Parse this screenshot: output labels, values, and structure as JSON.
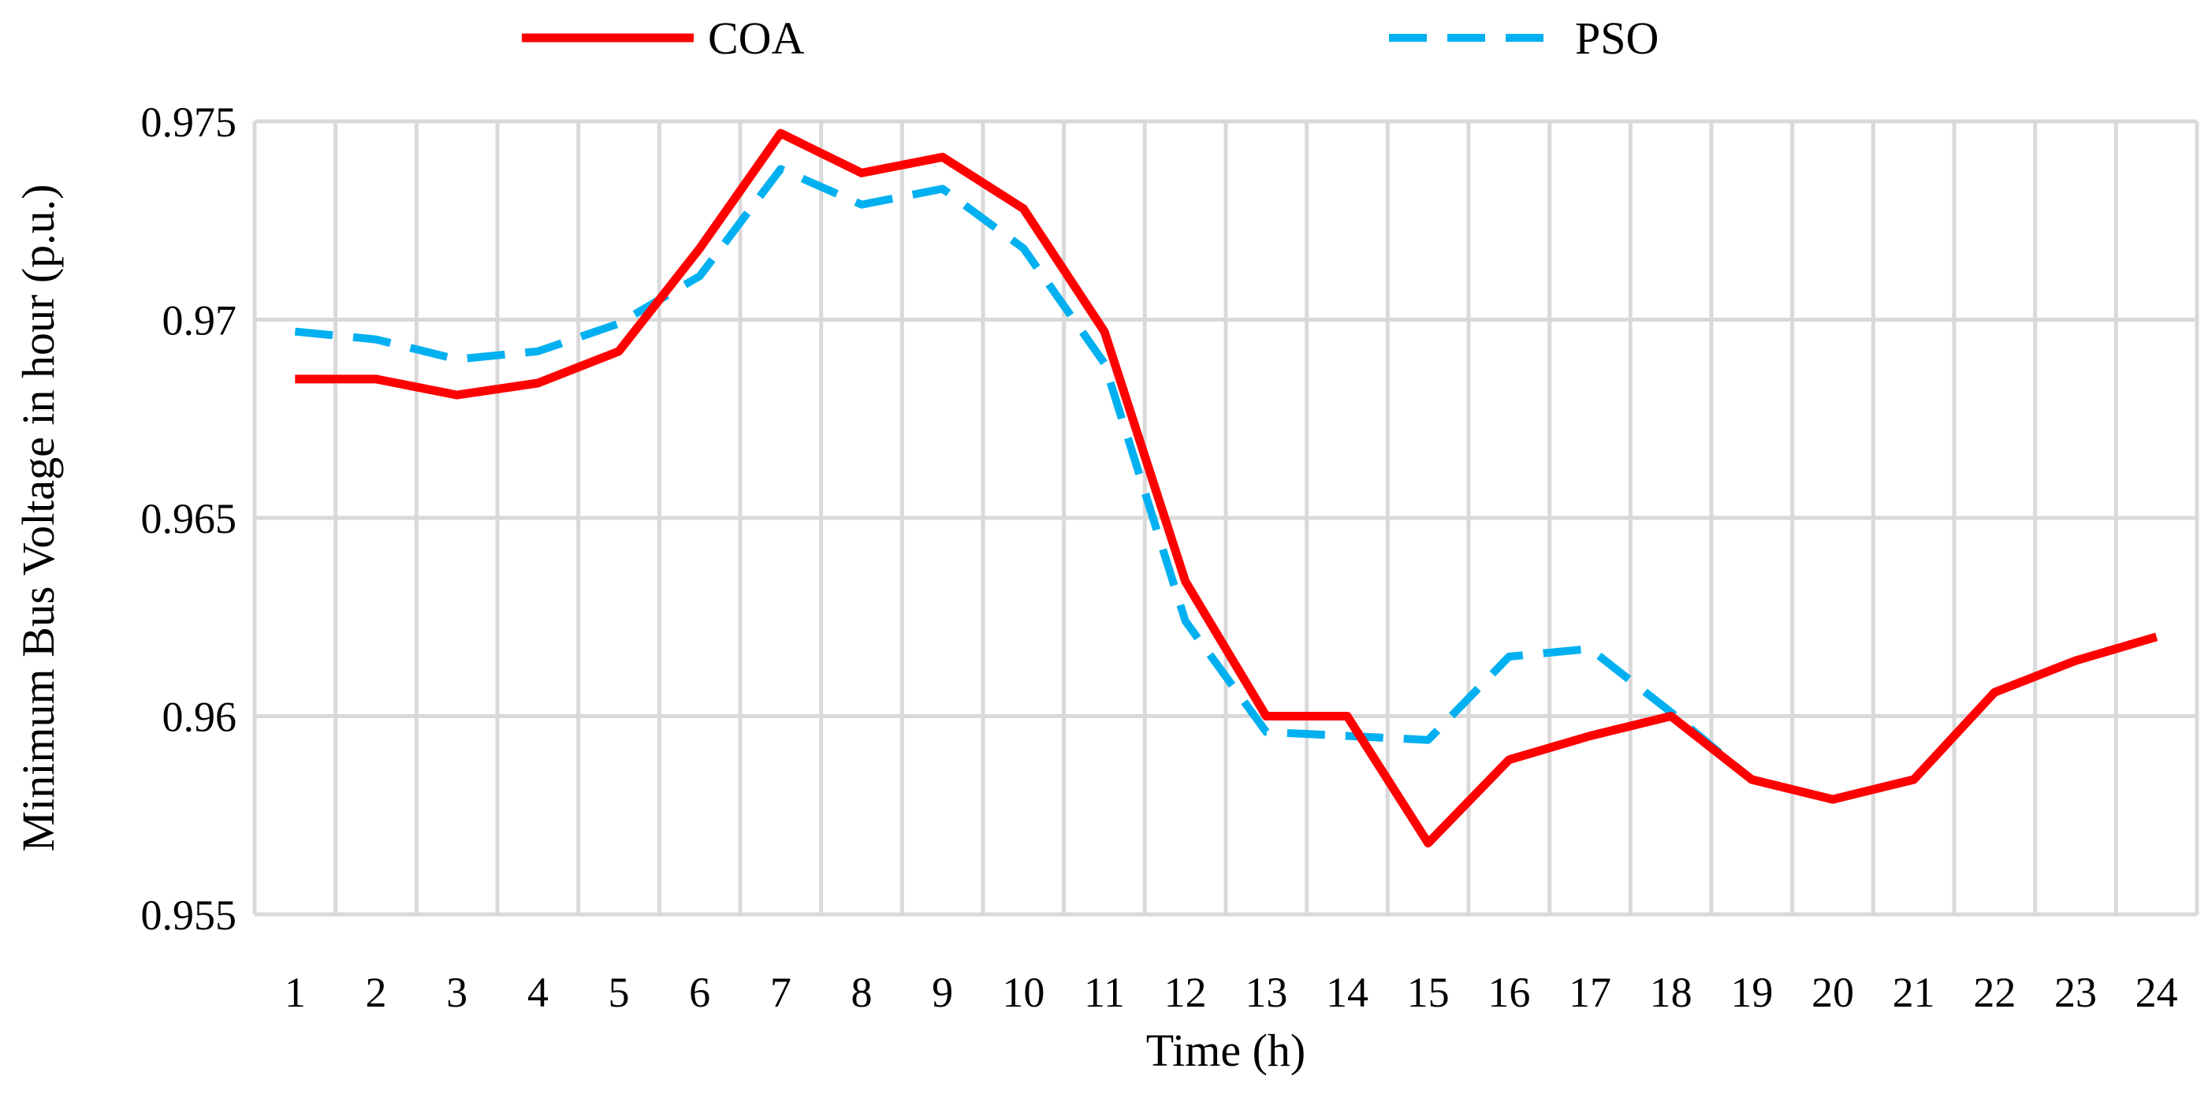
{
  "chart_data": {
    "type": "line",
    "title": "",
    "xlabel": "Time (h)",
    "ylabel": "Minimum Bus Voltage in hour (p.u.)",
    "categories": [
      "1",
      "2",
      "3",
      "4",
      "5",
      "6",
      "7",
      "8",
      "9",
      "10",
      "11",
      "12",
      "13",
      "14",
      "15",
      "16",
      "17",
      "18",
      "19",
      "20",
      "21",
      "22",
      "23",
      "24"
    ],
    "ylim": [
      0.955,
      0.975
    ],
    "yticks": [
      0.955,
      0.96,
      0.965,
      0.97,
      0.975
    ],
    "ytick_labels": [
      "0.955",
      "0.96",
      "0.965",
      "0.97",
      "0.975"
    ],
    "grid": true,
    "legend_position": "top",
    "series": [
      {
        "name": "COA",
        "color": "#ff0000",
        "style": "solid",
        "values": [
          0.9685,
          0.9685,
          0.9681,
          0.9684,
          0.9692,
          0.9718,
          0.9747,
          0.9737,
          0.9741,
          0.9728,
          0.9697,
          0.9634,
          0.96,
          0.96,
          0.9568,
          0.9589,
          0.9595,
          0.96,
          0.9584,
          0.9579,
          0.9584,
          0.9606,
          0.9614,
          0.962
        ]
      },
      {
        "name": "PSO",
        "color": "#00b0f0",
        "style": "dashed",
        "values": [
          0.9697,
          0.9695,
          0.969,
          0.9692,
          0.9699,
          0.9711,
          0.9738,
          0.9729,
          0.9733,
          0.9718,
          0.9689,
          0.9624,
          0.9596,
          0.9595,
          0.9594,
          0.9615,
          0.9617,
          0.9601,
          0.9584,
          0.9579,
          0.9584,
          0.9606,
          0.9614,
          0.962
        ]
      }
    ]
  }
}
